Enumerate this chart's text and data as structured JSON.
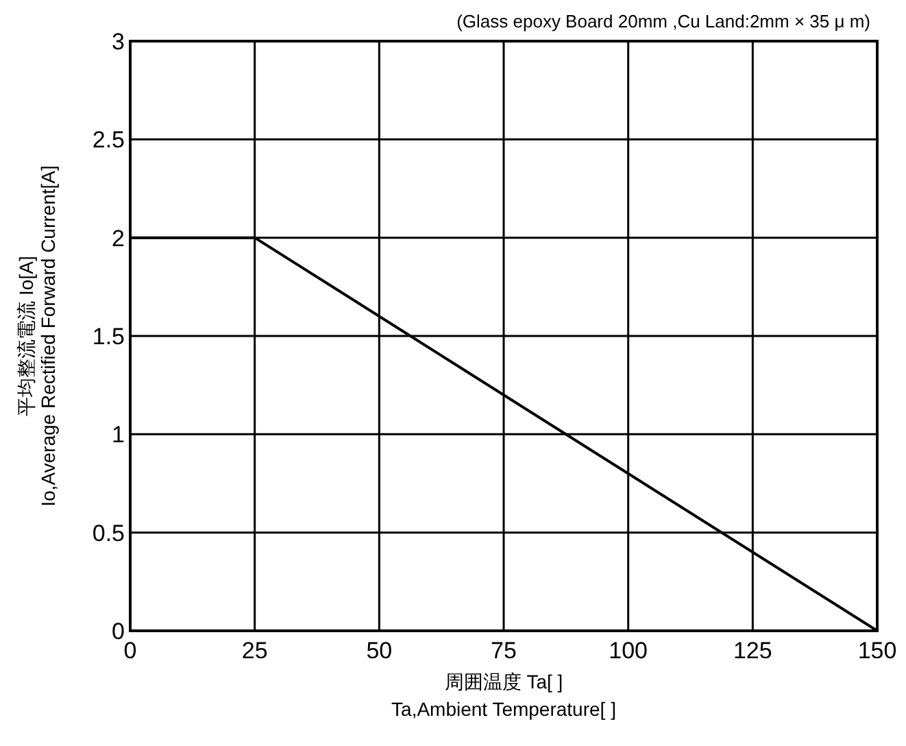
{
  "chart_data": {
    "type": "line",
    "xlabel": "周囲温度 Ta[   ]\nTa,Ambient Temperature[   ]",
    "ylabel": "平均整流電流 Io[A]\nIo,Average Rectified Forward Current[A]",
    "annotations": [
      "(Glass epoxy Board 20mm    ,Cu Land:2mm    × 35 μ m)"
    ],
    "x": [
      0,
      25,
      150
    ],
    "series": [
      {
        "color": "#000000",
        "values": [
          2,
          2,
          0
        ]
      }
    ],
    "xlim": [
      0,
      150
    ],
    "xticks": [
      0,
      25,
      50,
      75,
      100,
      125,
      150
    ],
    "ylim": [
      0,
      3
    ],
    "yticks": [
      0,
      0.5,
      1,
      1.5,
      2,
      2.5,
      3
    ],
    "grid": true,
    "marker": "none",
    "line_style": "solid"
  }
}
